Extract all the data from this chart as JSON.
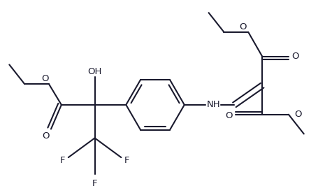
{
  "bg_color": "#ffffff",
  "line_color": "#1a1a2e",
  "lw": 1.5,
  "figsize": [
    4.65,
    2.76
  ],
  "dpi": 100,
  "xlim": [
    0,
    465
  ],
  "ylim": [
    0,
    276
  ]
}
